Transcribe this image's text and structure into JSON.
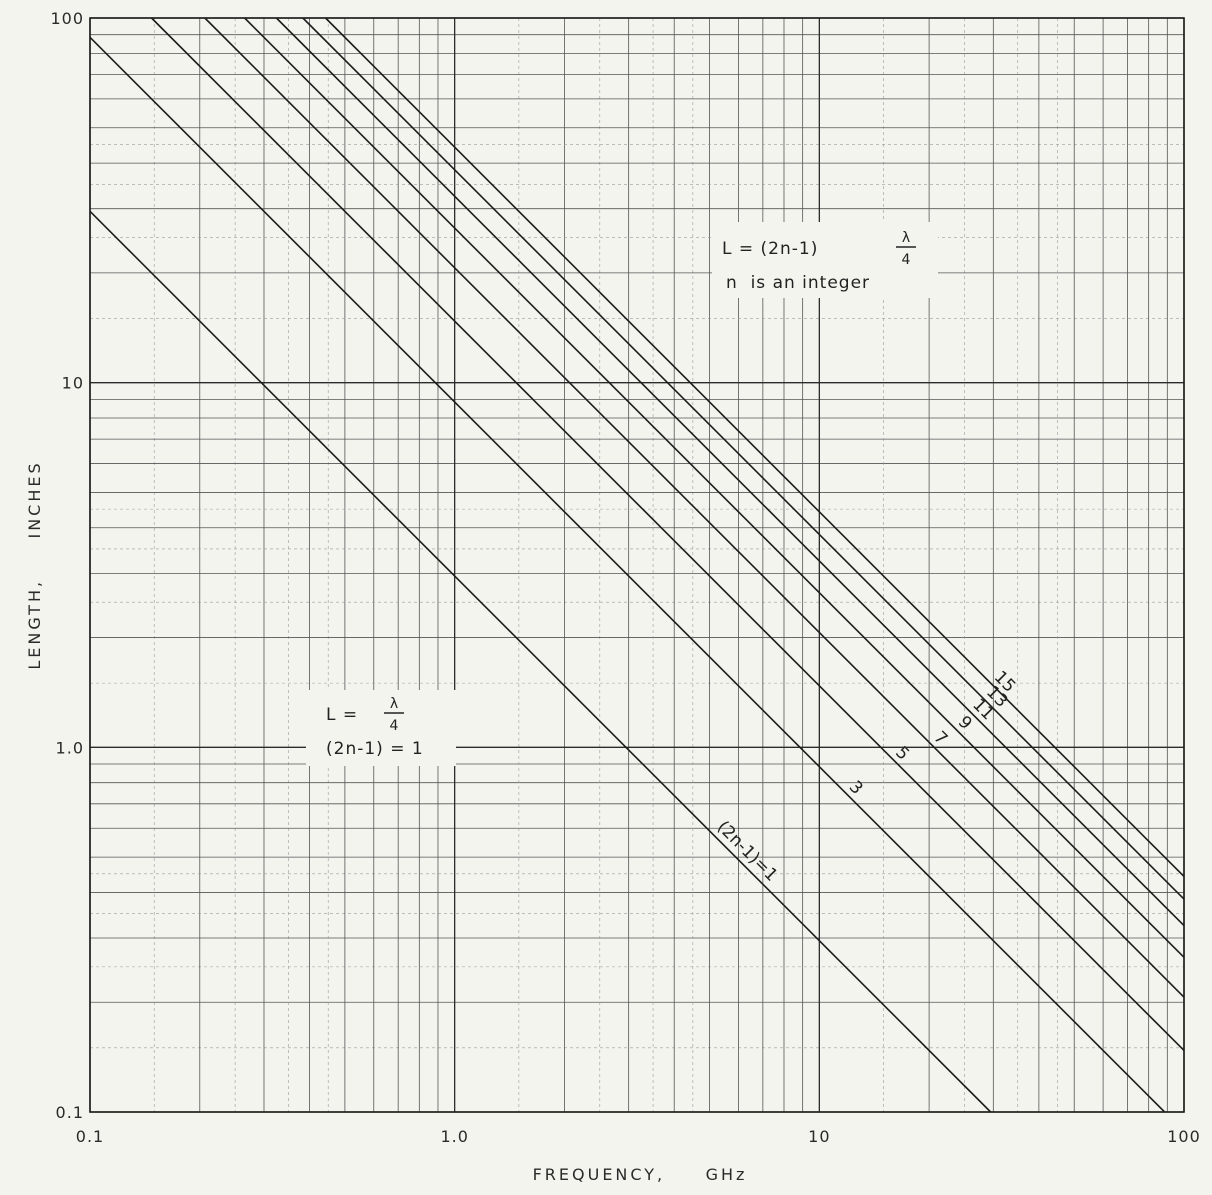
{
  "chart_data": {
    "type": "line",
    "title": "",
    "xlabel": "FREQUENCY,     GHz",
    "ylabel": "LENGTH,     INCHES",
    "x_scale": "log",
    "y_scale": "log",
    "xlim": [
      0.1,
      100
    ],
    "ylim": [
      0.1,
      100
    ],
    "x_ticks": [
      "0.1",
      "1.0",
      "10",
      "100"
    ],
    "y_ticks": [
      "0.1",
      "1.0",
      "10",
      "100"
    ],
    "grid": true,
    "series": [
      {
        "name": "(2n-1)=1",
        "label": "(2n-1)=1",
        "x": [
          0.1,
          29.5
        ],
        "y": [
          29.5,
          0.1
        ]
      },
      {
        "name": "3",
        "label": "3",
        "x": [
          0.1,
          88.5
        ],
        "y": [
          88.5,
          0.1
        ]
      },
      {
        "name": "5",
        "label": "5",
        "x": [
          0.1475,
          100
        ],
        "y": [
          100,
          0.1475
        ]
      },
      {
        "name": "7",
        "label": "7",
        "x": [
          0.2065,
          100
        ],
        "y": [
          100,
          0.2065
        ]
      },
      {
        "name": "9",
        "label": "9",
        "x": [
          0.2655,
          100
        ],
        "y": [
          100,
          0.2655
        ]
      },
      {
        "name": "11",
        "label": "11",
        "x": [
          0.3245,
          100
        ],
        "y": [
          100,
          0.3245
        ]
      },
      {
        "name": "13",
        "label": "13",
        "x": [
          0.3835,
          100
        ],
        "y": [
          100,
          0.3835
        ]
      },
      {
        "name": "15",
        "label": "15",
        "x": [
          0.4425,
          100
        ],
        "y": [
          100,
          0.4425
        ]
      }
    ],
    "annotations": {
      "general": {
        "lhs": "L = (2n-1)",
        "numerator": "λ",
        "denominator": "4",
        "note": "n  is an integer"
      },
      "quarter": {
        "lhs": "L =",
        "numerator": "λ",
        "denominator": "4",
        "note": "(2n-1) = 1"
      }
    }
  }
}
